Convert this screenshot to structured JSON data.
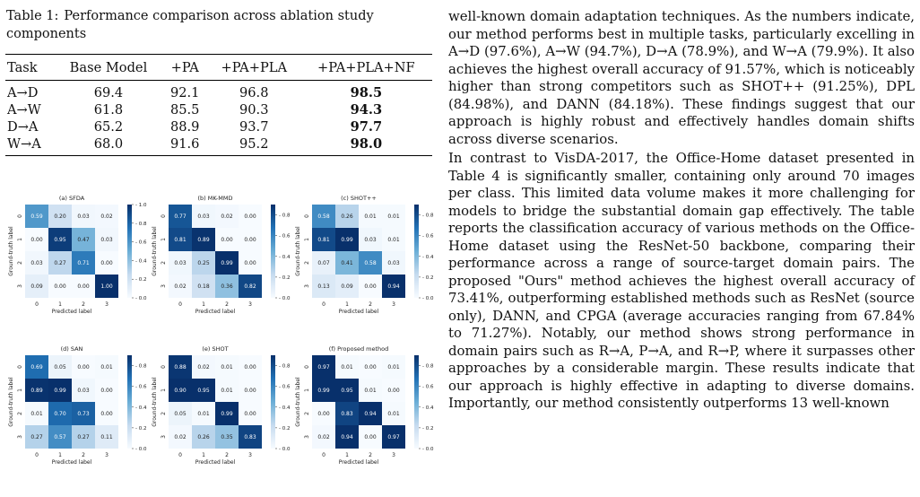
{
  "table": {
    "caption_label": "Table 1:",
    "caption_text": "Performance comparison across ablation study components",
    "headers": [
      "Task",
      "Base Model",
      "+PA",
      "+PA+PLA",
      "+PA+PLA+NF"
    ],
    "rows": [
      {
        "task": "A→D",
        "base": "69.4",
        "pa": "92.1",
        "pa_pla": "96.8",
        "full": "98.5"
      },
      {
        "task": "A→W",
        "base": "61.8",
        "pa": "85.5",
        "pa_pla": "90.3",
        "full": "94.3"
      },
      {
        "task": "D→A",
        "base": "65.2",
        "pa": "88.9",
        "pa_pla": "93.7",
        "full": "97.7"
      },
      {
        "task": "W→A",
        "base": "68.0",
        "pa": "91.6",
        "pa_pla": "95.2",
        "full": "98.0"
      }
    ]
  },
  "figure": {
    "xlabel": "Predicted label",
    "ylabel": "Ground-truth label",
    "tick_labels": [
      "0",
      "1",
      "2",
      "3"
    ],
    "colorbar_ticks": {
      "sfda": [
        "1.0",
        "0.8",
        "0.6",
        "0.4",
        "0.2",
        "0.0"
      ],
      "other": [
        "0.8",
        "0.6",
        "0.4",
        "0.2",
        "0.0"
      ]
    },
    "colors": {
      "low": "#f7fbff",
      "high": "#08306b"
    }
  },
  "chart_data": [
    {
      "type": "heatmap",
      "title": "(a) SFDA",
      "xlabel": "Predicted label",
      "ylabel": "Ground-truth label",
      "x": [
        "0",
        "1",
        "2",
        "3"
      ],
      "y": [
        "0",
        "1",
        "2",
        "3"
      ],
      "zlim": [
        0,
        1.0
      ],
      "values": [
        [
          0.59,
          0.2,
          0.03,
          0.02
        ],
        [
          0.0,
          0.95,
          0.47,
          0.03
        ],
        [
          0.03,
          0.27,
          0.71,
          0.0
        ],
        [
          0.09,
          0.0,
          0.0,
          1.0
        ]
      ]
    },
    {
      "type": "heatmap",
      "title": "(b) MK-MMD",
      "xlabel": "Predicted label",
      "ylabel": "Ground-truth label",
      "x": [
        "0",
        "1",
        "2",
        "3"
      ],
      "y": [
        "0",
        "1",
        "2",
        "3"
      ],
      "zlim": [
        0,
        0.9
      ],
      "values": [
        [
          0.77,
          0.03,
          0.02,
          0.0
        ],
        [
          0.81,
          0.89,
          0.0,
          0.0
        ],
        [
          0.03,
          0.25,
          0.99,
          0.0
        ],
        [
          0.02,
          0.18,
          0.36,
          0.82
        ]
      ]
    },
    {
      "type": "heatmap",
      "title": "(c) SHOT++",
      "xlabel": "Predicted label",
      "ylabel": "Ground-truth label",
      "x": [
        "0",
        "1",
        "2",
        "3"
      ],
      "y": [
        "0",
        "1",
        "2",
        "3"
      ],
      "zlim": [
        0,
        0.9
      ],
      "values": [
        [
          0.58,
          0.26,
          0.01,
          0.01
        ],
        [
          0.81,
          0.99,
          0.03,
          0.01
        ],
        [
          0.07,
          0.41,
          0.58,
          0.03
        ],
        [
          0.13,
          0.09,
          0.0,
          0.94
        ]
      ]
    },
    {
      "type": "heatmap",
      "title": "(d) SAN",
      "xlabel": "Predicted label",
      "ylabel": "Ground-truth label",
      "x": [
        "0",
        "1",
        "2",
        "3"
      ],
      "y": [
        "0",
        "1",
        "2",
        "3"
      ],
      "zlim": [
        0,
        0.9
      ],
      "values": [
        [
          0.69,
          0.05,
          0.0,
          0.01
        ],
        [
          0.89,
          0.99,
          0.03,
          0.0
        ],
        [
          0.01,
          0.7,
          0.73,
          0.0
        ],
        [
          0.27,
          0.57,
          0.27,
          0.11
        ]
      ]
    },
    {
      "type": "heatmap",
      "title": "(e) SHOT",
      "xlabel": "Predicted label",
      "ylabel": "Ground-truth label",
      "x": [
        "0",
        "1",
        "2",
        "3"
      ],
      "y": [
        "0",
        "1",
        "2",
        "3"
      ],
      "zlim": [
        0,
        0.9
      ],
      "values": [
        [
          0.88,
          0.02,
          0.01,
          0.0
        ],
        [
          0.9,
          0.95,
          0.01,
          0.0
        ],
        [
          0.05,
          0.01,
          0.99,
          0.0
        ],
        [
          0.02,
          0.26,
          0.35,
          0.83
        ]
      ]
    },
    {
      "type": "heatmap",
      "title": "(f) Proposed method",
      "xlabel": "Predicted label",
      "ylabel": "Ground-truth label",
      "x": [
        "0",
        "1",
        "2",
        "3"
      ],
      "y": [
        "0",
        "1",
        "2",
        "3"
      ],
      "zlim": [
        0,
        0.9
      ],
      "values": [
        [
          0.97,
          0.01,
          0.0,
          0.01
        ],
        [
          0.99,
          0.95,
          0.01,
          0.0
        ],
        [
          0.0,
          0.83,
          0.94,
          0.01
        ],
        [
          0.02,
          0.94,
          0.0,
          0.97
        ]
      ]
    }
  ],
  "body": {
    "para1": "well-known domain adaptation techniques. As the numbers indicate, our method performs best in multiple tasks, particularly excelling in A→D (97.6%), A→W (94.7%), D→A (78.9%), and W→A (79.9%). It also achieves the highest overall accuracy of 91.57%, which is noticeably higher than strong competitors such as SHOT++ (91.25%), DPL (84.98%), and DANN (84.18%). These findings suggest that our approach is highly robust and effectively handles domain shifts across diverse scenarios.",
    "para2": "In contrast to VisDA-2017, the Office-Home dataset presented in Table 4 is significantly smaller, containing only around 70 images per class. This limited data volume makes it more challenging for models to bridge the substantial domain gap effectively. The table reports the classification accuracy of various methods on the Office-Home dataset using the ResNet-50 backbone, comparing their performance across a range of source-target domain pairs. The proposed \"Ours\" method achieves the highest overall accuracy of 73.41%, outperforming established methods such as ResNet (source only), DANN, and CPGA (average accuracies ranging from 67.84% to 71.27%). Notably, our method shows strong performance in domain pairs such as R→A, P→A, and R→P, where it surpasses other approaches by a considerable margin. These results indicate that our approach is highly effective in adapting to diverse domains. Importantly, our method consistently outperforms 13 well-known"
  }
}
